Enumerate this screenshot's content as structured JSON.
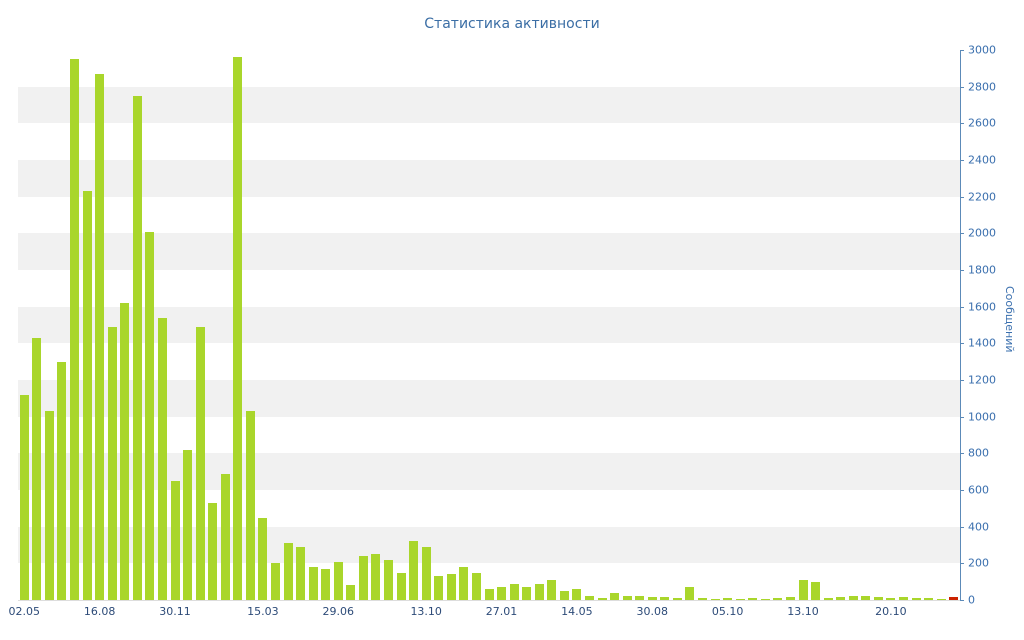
{
  "chart_data": {
    "type": "bar",
    "title": "Статистика активности",
    "ylabel": "Сообщений",
    "ylim": [
      0,
      3000
    ],
    "grid": "horizontal-stripes",
    "legend": "none",
    "y_ticks": [
      0,
      200,
      400,
      600,
      800,
      1000,
      1200,
      1400,
      1600,
      1800,
      2000,
      2200,
      2400,
      2600,
      2800,
      3000
    ],
    "x_ticks": [
      {
        "label": "02.05",
        "index": 0
      },
      {
        "label": "16.08",
        "index": 6
      },
      {
        "label": "30.11",
        "index": 12
      },
      {
        "label": "15.03",
        "index": 19
      },
      {
        "label": "29.06",
        "index": 25
      },
      {
        "label": "13.10",
        "index": 32
      },
      {
        "label": "27.01",
        "index": 38
      },
      {
        "label": "14.05",
        "index": 44
      },
      {
        "label": "30.08",
        "index": 50
      },
      {
        "label": "05.10",
        "index": 56
      },
      {
        "label": "13.10",
        "index": 62
      },
      {
        "label": "20.10",
        "index": 69
      }
    ],
    "values": [
      1120,
      1430,
      1030,
      1300,
      2950,
      2230,
      2870,
      1490,
      1620,
      2750,
      2010,
      1540,
      650,
      820,
      1490,
      530,
      690,
      2960,
      1030,
      450,
      200,
      310,
      290,
      180,
      170,
      210,
      80,
      240,
      250,
      220,
      150,
      320,
      290,
      130,
      140,
      180,
      150,
      60,
      70,
      90,
      70,
      90,
      110,
      50,
      60,
      20,
      10,
      40,
      20,
      20,
      15,
      15,
      10,
      70,
      10,
      5,
      10,
      5,
      10,
      5,
      10,
      15,
      110,
      100,
      10,
      15,
      20,
      20,
      15,
      10,
      15,
      10,
      10,
      5,
      15
    ],
    "colors": {
      "title": "#3b6ea5",
      "axis": "#5c8ab8",
      "y_label": "#3a6fae",
      "x_label": "#2d4b78",
      "bar": "#a9d62b",
      "last_bar": "#cc2200",
      "stripe": "#f1f1f1",
      "baseline": "#dddddd"
    }
  }
}
